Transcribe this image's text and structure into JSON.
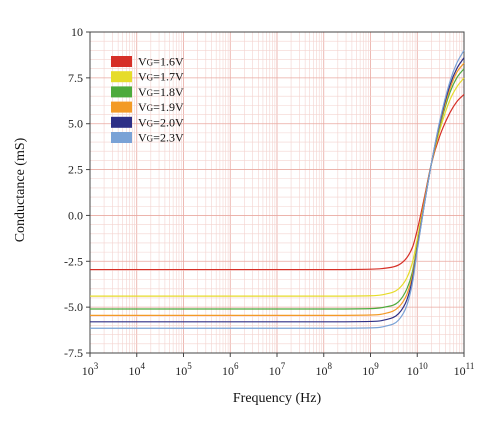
{
  "chart_data": {
    "type": "line",
    "xlabel": "Frequency (Hz)",
    "ylabel": "Conductance (mS)",
    "x_scale": "log",
    "xlim": [
      1000,
      100000000000
    ],
    "ylim": [
      -7.5,
      10
    ],
    "x_ticks": [
      {
        "base": "10",
        "exp": "3"
      },
      {
        "base": "10",
        "exp": "4"
      },
      {
        "base": "10",
        "exp": "5"
      },
      {
        "base": "10",
        "exp": "6"
      },
      {
        "base": "10",
        "exp": "7"
      },
      {
        "base": "10",
        "exp": "8"
      },
      {
        "base": "10",
        "exp": "9"
      },
      {
        "base": "10",
        "exp": "10"
      },
      {
        "base": "10",
        "exp": "11"
      }
    ],
    "y_ticks": [
      "-7.5",
      "-5.0",
      "-2.5",
      "0.0",
      "2.5",
      "5.0",
      "7.5",
      "10"
    ],
    "y_tick_values": [
      -7.5,
      -5.0,
      -2.5,
      0.0,
      2.5,
      5.0,
      7.5,
      10
    ],
    "grid": true,
    "legend_position": "top-left",
    "x": [
      1000,
      10000,
      100000,
      1000000,
      10000000,
      100000000,
      1000000000,
      2000000000,
      4000000000,
      6000000000,
      8000000000,
      10000000000,
      14000000000,
      20000000000,
      30000000000,
      50000000000,
      70000000000,
      100000000000
    ],
    "series": [
      {
        "name": "VG=1.6V",
        "sub": "G",
        "label_pre": "V",
        "label_post": "=1.6V",
        "color": "#d62f27",
        "values": [
          -2.95,
          -2.95,
          -2.95,
          -2.95,
          -2.95,
          -2.95,
          -2.93,
          -2.88,
          -2.7,
          -2.3,
          -1.7,
          -0.8,
          0.9,
          2.8,
          4.3,
          5.6,
          6.2,
          6.6
        ]
      },
      {
        "name": "VG=1.7V",
        "sub": "G",
        "label_pre": "V",
        "label_post": "=1.7V",
        "color": "#e6dc2a",
        "values": [
          -4.4,
          -4.4,
          -4.4,
          -4.4,
          -4.4,
          -4.4,
          -4.38,
          -4.3,
          -4.0,
          -3.4,
          -2.5,
          -1.3,
          0.7,
          2.8,
          4.6,
          6.3,
          7.0,
          7.5
        ]
      },
      {
        "name": "VG=1.8V",
        "sub": "G",
        "label_pre": "V",
        "label_post": "=1.8V",
        "color": "#4daa3c",
        "values": [
          -5.1,
          -5.1,
          -5.1,
          -5.1,
          -5.1,
          -5.1,
          -5.08,
          -5.0,
          -4.7,
          -4.0,
          -3.0,
          -1.6,
          0.6,
          2.8,
          4.8,
          6.7,
          7.5,
          8.0
        ]
      },
      {
        "name": "VG=1.9V",
        "sub": "G",
        "label_pre": "V",
        "label_post": "=1.9V",
        "color": "#f39a26",
        "values": [
          -5.45,
          -5.45,
          -5.45,
          -5.45,
          -5.45,
          -5.45,
          -5.43,
          -5.35,
          -5.0,
          -4.3,
          -3.2,
          -1.7,
          0.6,
          2.8,
          4.9,
          6.9,
          7.8,
          8.3
        ]
      },
      {
        "name": "VG=2.0V",
        "sub": "G",
        "label_pre": "V",
        "label_post": "=2.0V",
        "color": "#2e2f86",
        "values": [
          -5.8,
          -5.8,
          -5.8,
          -5.8,
          -5.8,
          -5.8,
          -5.78,
          -5.7,
          -5.35,
          -4.6,
          -3.4,
          -1.8,
          0.5,
          2.8,
          5.0,
          7.1,
          8.0,
          8.6
        ]
      },
      {
        "name": "VG=2.3V",
        "sub": "G",
        "label_pre": "V",
        "label_post": "=2.3V",
        "color": "#7aa2d6",
        "values": [
          -6.15,
          -6.15,
          -6.15,
          -6.15,
          -6.15,
          -6.15,
          -6.13,
          -6.05,
          -5.7,
          -4.9,
          -3.6,
          -1.9,
          0.5,
          2.8,
          5.1,
          7.3,
          8.3,
          9.0
        ]
      }
    ]
  }
}
